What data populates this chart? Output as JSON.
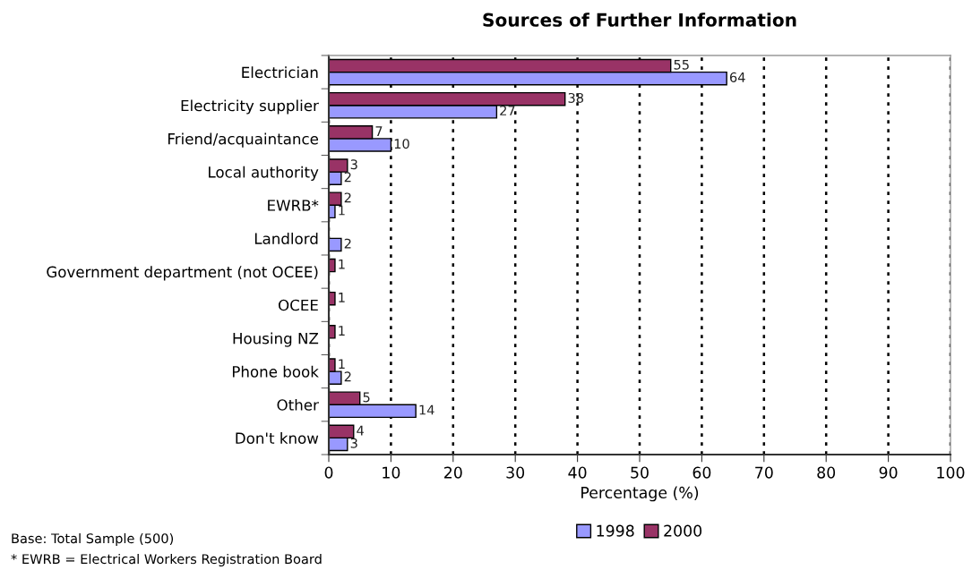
{
  "chart_data": {
    "type": "bar",
    "orientation": "horizontal",
    "title": "Sources of Further Information",
    "xlabel": "Percentage (%)",
    "categories": [
      "Electrician",
      "Electricity supplier",
      "Friend/acquaintance",
      "Local authority",
      "EWRB*",
      "Landlord",
      "Government department (not OCEE)",
      "OCEE",
      "Housing NZ",
      "Phone book",
      "Other",
      "Don't know"
    ],
    "series": [
      {
        "name": "1998",
        "color": "#9999ff",
        "values": [
          64,
          27,
          10,
          2,
          1,
          2,
          null,
          null,
          null,
          2,
          14,
          3
        ]
      },
      {
        "name": "2000",
        "color": "#993366",
        "values": [
          55,
          38,
          7,
          3,
          2,
          null,
          1,
          1,
          1,
          1,
          5,
          4
        ]
      }
    ],
    "xlim": [
      0,
      100
    ],
    "xticks": [
      0,
      10,
      20,
      30,
      40,
      50,
      60,
      70,
      80,
      90,
      100
    ],
    "grid": "x",
    "legend": "bottom",
    "data_labels": true,
    "line_style": "dotted",
    "annotations": [
      "Base: Total Sample (500)",
      "* EWRB = Electrical Workers Registration Board"
    ]
  }
}
